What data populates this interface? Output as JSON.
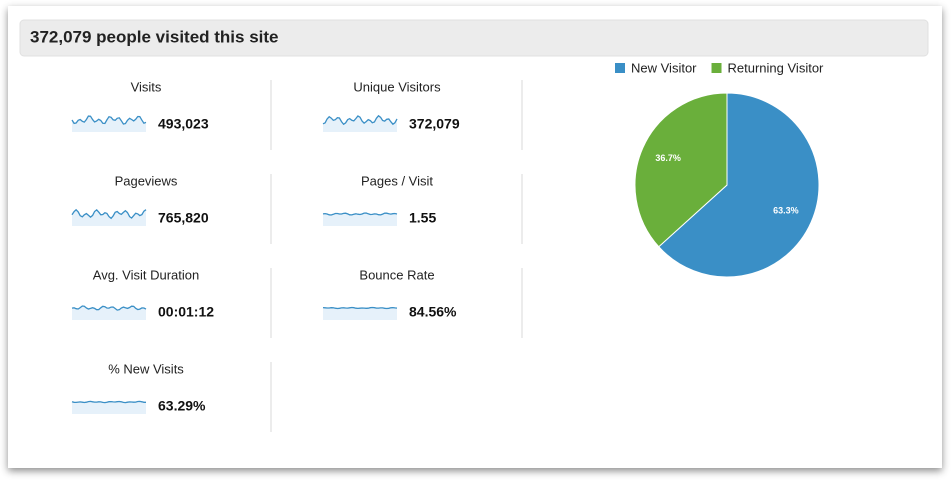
{
  "header": {
    "title": "372,079 people visited this site"
  },
  "metrics": [
    {
      "label": "Visits",
      "value": "493,023"
    },
    {
      "label": "Unique Visitors",
      "value": "372,079"
    },
    {
      "label": "Pageviews",
      "value": "765,820"
    },
    {
      "label": "Pages / Visit",
      "value": "1.55"
    },
    {
      "label": "Avg. Visit Duration",
      "value": "00:01:12"
    },
    {
      "label": "Bounce Rate",
      "value": "84.56%"
    },
    {
      "label": "% New Visits",
      "value": "63.29%"
    }
  ],
  "chart_data": {
    "type": "pie",
    "legend": "top",
    "categories": [
      "New Visitor",
      "Returning Visitor"
    ],
    "values": [
      63.3,
      36.7
    ],
    "value_labels": [
      "63.3%",
      "36.7%"
    ],
    "colors": [
      "#3a8fc6",
      "#6aaf3b"
    ]
  }
}
